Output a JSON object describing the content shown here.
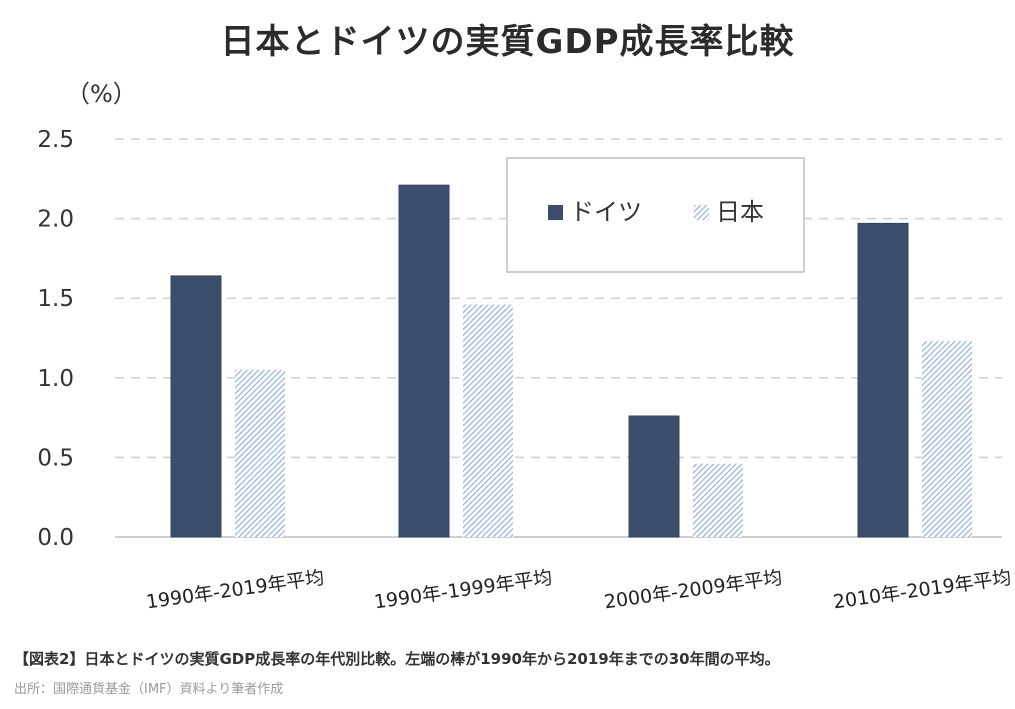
{
  "title": "日本とドイツの実質GDP成長率比較",
  "unit_label": "（%）",
  "caption": "【図表2】日本とドイツの実質GDP成長率の年代別比較。左端の棒が1990年から2019年までの30年間の平均。",
  "source": "出所：国際通貨基金（IMF）資料より筆者作成",
  "colors": {
    "germany": "#3d4e6c",
    "japan_hatch": "#8eaadb",
    "grid": "#cfcfcf",
    "axis": "#bfbfbf"
  },
  "chart_data": {
    "type": "bar",
    "title": "日本とドイツの実質GDP成長率比較",
    "ylabel": "（%）",
    "xlabel": "",
    "ylim": [
      0,
      2.5
    ],
    "yticks": [
      "0.0",
      "0.5",
      "1.0",
      "1.5",
      "2.0",
      "2.5"
    ],
    "ytick_values": [
      0,
      0.5,
      1.0,
      1.5,
      2.0,
      2.5
    ],
    "grid": true,
    "legend_position": "top-right",
    "categories": [
      "1990年-2019年平均",
      "1990年-1999年平均",
      "2000年-2009年平均",
      "2010年-2019年平均"
    ],
    "series": [
      {
        "name": "ドイツ",
        "values": [
          1.64,
          2.21,
          0.76,
          1.97
        ],
        "style": "solid"
      },
      {
        "name": "日本",
        "values": [
          1.05,
          1.46,
          0.46,
          1.23
        ],
        "style": "hatched"
      }
    ]
  }
}
